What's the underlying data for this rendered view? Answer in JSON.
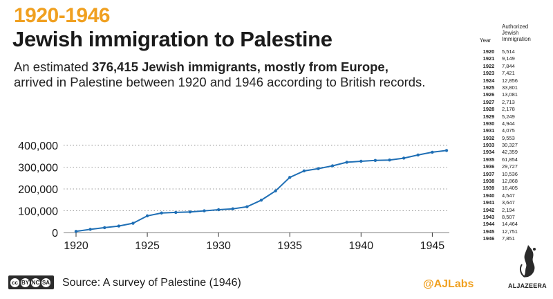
{
  "header": {
    "years": "1920-1946",
    "title": "Jewish immigration to Palestine",
    "subtitle_pre": "An estimated ",
    "subtitle_bold": "376,415 Jewish immigrants, mostly from Europe,",
    "subtitle_post": " arrived in Palestine between 1920 and 1946 according to British records."
  },
  "table": {
    "year_header": "Year",
    "value_header": "Authorized Jewish Immigration",
    "rows": [
      {
        "year": "1920",
        "value": "5,514"
      },
      {
        "year": "1921",
        "value": "9,149"
      },
      {
        "year": "1922",
        "value": "7,844"
      },
      {
        "year": "1923",
        "value": "7,421"
      },
      {
        "year": "1924",
        "value": "12,856"
      },
      {
        "year": "1925",
        "value": "33,801"
      },
      {
        "year": "1926",
        "value": "13,081"
      },
      {
        "year": "1927",
        "value": "2,713"
      },
      {
        "year": "1928",
        "value": "2,178"
      },
      {
        "year": "1929",
        "value": "5,249"
      },
      {
        "year": "1930",
        "value": "4,944"
      },
      {
        "year": "1931",
        "value": "4,075"
      },
      {
        "year": "1932",
        "value": "9,553"
      },
      {
        "year": "1933",
        "value": "30,327"
      },
      {
        "year": "1934",
        "value": "42,359"
      },
      {
        "year": "1935",
        "value": "61,854"
      },
      {
        "year": "1936",
        "value": "29,727"
      },
      {
        "year": "1937",
        "value": "10,536"
      },
      {
        "year": "1938",
        "value": "12,868"
      },
      {
        "year": "1939",
        "value": "16,405"
      },
      {
        "year": "1940",
        "value": "4,547"
      },
      {
        "year": "1941",
        "value": "3,647"
      },
      {
        "year": "1942",
        "value": "2,194"
      },
      {
        "year": "1943",
        "value": "8,507"
      },
      {
        "year": "1944",
        "value": "14,464"
      },
      {
        "year": "1945",
        "value": "12,751"
      },
      {
        "year": "1946",
        "value": "7,851"
      }
    ]
  },
  "chart_data": {
    "type": "line",
    "title": "",
    "xlabel": "",
    "ylabel": "",
    "x": [
      1920,
      1921,
      1922,
      1923,
      1924,
      1925,
      1926,
      1927,
      1928,
      1929,
      1930,
      1931,
      1932,
      1933,
      1934,
      1935,
      1936,
      1937,
      1938,
      1939,
      1940,
      1941,
      1942,
      1943,
      1944,
      1945,
      1946
    ],
    "values": [
      5514,
      14663,
      22507,
      29928,
      42784,
      76585,
      89666,
      92379,
      94557,
      99806,
      104750,
      108825,
      118378,
      148705,
      191064,
      252918,
      282645,
      293181,
      306049,
      322454,
      327001,
      330648,
      332842,
      341349,
      355813,
      368564,
      376415
    ],
    "xlim": [
      1920,
      1946
    ],
    "ylim": [
      0,
      400000
    ],
    "x_ticks": [
      "1920",
      "1925",
      "1930",
      "1935",
      "1940",
      "1945"
    ],
    "y_ticks": [
      "0",
      "100,000",
      "200,000",
      "300,000",
      "400,000"
    ],
    "line_color": "#1f6fb5",
    "grid": true
  },
  "footer": {
    "license_badges": [
      "cc",
      "BY",
      "NC",
      "SA"
    ],
    "source": "Source: A survey of Palestine (1946)",
    "handle": "@AJLabs",
    "logo_text": "ALJAZEERA"
  },
  "colors": {
    "accent": "#f0a020",
    "line": "#1f6fb5",
    "grid": "#9a9a9a"
  }
}
